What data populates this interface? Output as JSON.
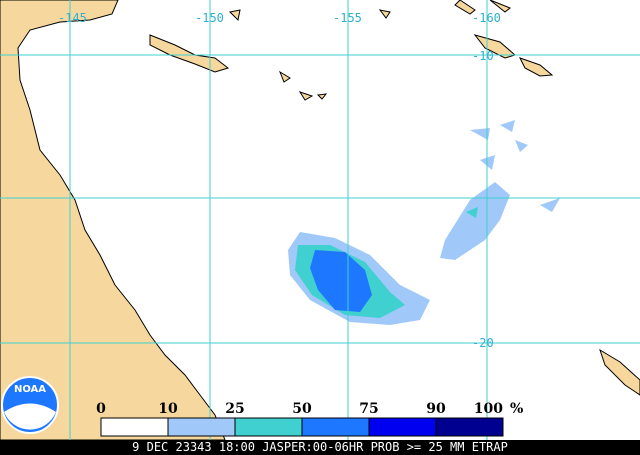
{
  "map": {
    "lon_labels": [
      "-145",
      "-150",
      "-155",
      "-160"
    ],
    "lat_labels": [
      "-10",
      "-20"
    ],
    "logo": "NOAA",
    "legend": {
      "labels": [
        "0",
        "10",
        "25",
        "50",
        "75",
        "90",
        "100"
      ],
      "unit": "%",
      "colors": [
        "#ffffff",
        "#a0c8f8",
        "#40d0d0",
        "#1e78ff",
        "#0000f0",
        "#000090"
      ]
    },
    "caption": "9 DEC 23343 18:00 JASPER:00-06HR PROB >= 25 MM ETRAP"
  }
}
